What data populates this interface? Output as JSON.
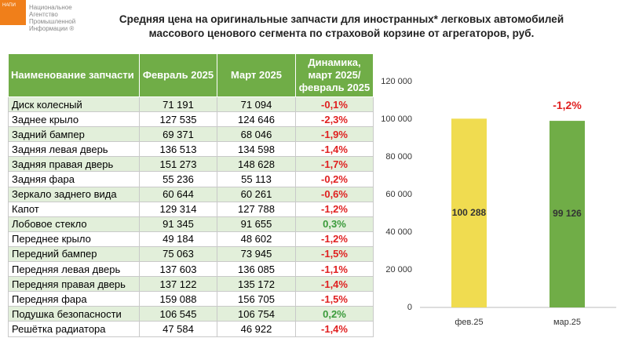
{
  "logo": {
    "abbr": "НАПИ",
    "lines": [
      "Национальное",
      "Агентство",
      "Промышленной",
      "Информации ®"
    ]
  },
  "header": {
    "title": [
      "Средняя цена на оригинальные запчасти для иностранных* легковых автомобилей",
      "массового ценового сегмента по страховой корзине от агрегаторов, руб."
    ]
  },
  "table": {
    "columns": [
      "Наименование запчасти",
      "Февраль 2025",
      "Март 2025",
      "Динамика, март 2025/ февраль 2025"
    ],
    "rows": [
      [
        "Диск колесный",
        "71 191",
        "71 094",
        "-0,1%"
      ],
      [
        "Заднее крыло",
        "127 535",
        "124 646",
        "-2,3%"
      ],
      [
        "Задний бампер",
        "69 371",
        "68 046",
        "-1,9%"
      ],
      [
        "Задняя левая дверь",
        "136 513",
        "134 598",
        "-1,4%"
      ],
      [
        "Задняя правая дверь",
        "151 273",
        "148 628",
        "-1,7%"
      ],
      [
        "Задняя фара",
        "55 236",
        "55 113",
        "-0,2%"
      ],
      [
        "Зеркало заднего вида",
        "60 644",
        "60 261",
        "-0,6%"
      ],
      [
        "Капот",
        "129 314",
        "127 788",
        "-1,2%"
      ],
      [
        "Лобовое стекло",
        "91 345",
        "91 655",
        "0,3%"
      ],
      [
        "Переднее крыло",
        "49 184",
        "48 602",
        "-1,2%"
      ],
      [
        "Передний бампер",
        "75 063",
        "73 945",
        "-1,5%"
      ],
      [
        "Передняя левая дверь",
        "137 603",
        "136 085",
        "-1,1%"
      ],
      [
        "Передняя правая дверь",
        "137 122",
        "135 172",
        "-1,4%"
      ],
      [
        "Передняя фара",
        "159 088",
        "156 705",
        "-1,5%"
      ],
      [
        "Подушка безопасности",
        "106 545",
        "106 754",
        "0,2%"
      ],
      [
        "Решётка радиатора",
        "47 584",
        "46 922",
        "-1,4%"
      ]
    ],
    "colors": {
      "negative": "#e02020",
      "positive": "#3a9a3a"
    }
  },
  "chart_data": {
    "type": "bar",
    "categories": [
      "фев.25",
      "мар.25"
    ],
    "values": [
      100288,
      99126
    ],
    "value_labels": [
      "100 288",
      "99 126"
    ],
    "colors": [
      "#f0dc50",
      "#70ad47"
    ],
    "annotation": "-1,2%",
    "ylim": [
      0,
      120000
    ],
    "yticks": [
      0,
      {
        "value": 20000,
        "label": "20 000"
      },
      {
        "value": 40000,
        "label": "40 000"
      },
      {
        "value": 60000,
        "label": "60 000"
      },
      {
        "value": 80000,
        "label": "80 000"
      },
      {
        "value": 100000,
        "label": "100 000"
      },
      {
        "value": 120000,
        "label": "120 000"
      }
    ]
  }
}
